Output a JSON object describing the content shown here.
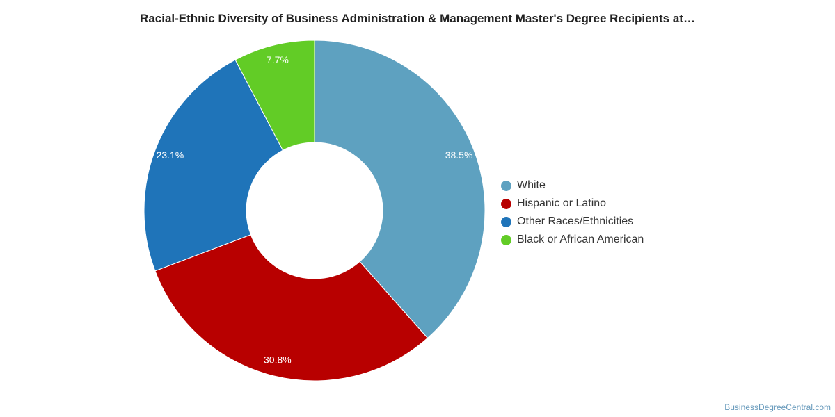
{
  "chart_data": {
    "type": "pie",
    "title": "Racial-Ethnic Diversity of Business Administration & Management Master's Degree Recipients at…",
    "donut": true,
    "slices": [
      {
        "label": "White",
        "value": 38.5,
        "display": "38.5%",
        "color": "#5ea1c0"
      },
      {
        "label": "Hispanic or Latino",
        "value": 30.8,
        "display": "30.8%",
        "color": "#b80000"
      },
      {
        "label": "Other Races/Ethnicities",
        "value": 23.1,
        "display": "23.1%",
        "color": "#1f74b9"
      },
      {
        "label": "Black or African American",
        "value": 7.7,
        "display": "7.7%",
        "color": "#62cc26"
      }
    ],
    "legend_position": "right"
  },
  "source_credit": "BusinessDegreeCentral.com"
}
